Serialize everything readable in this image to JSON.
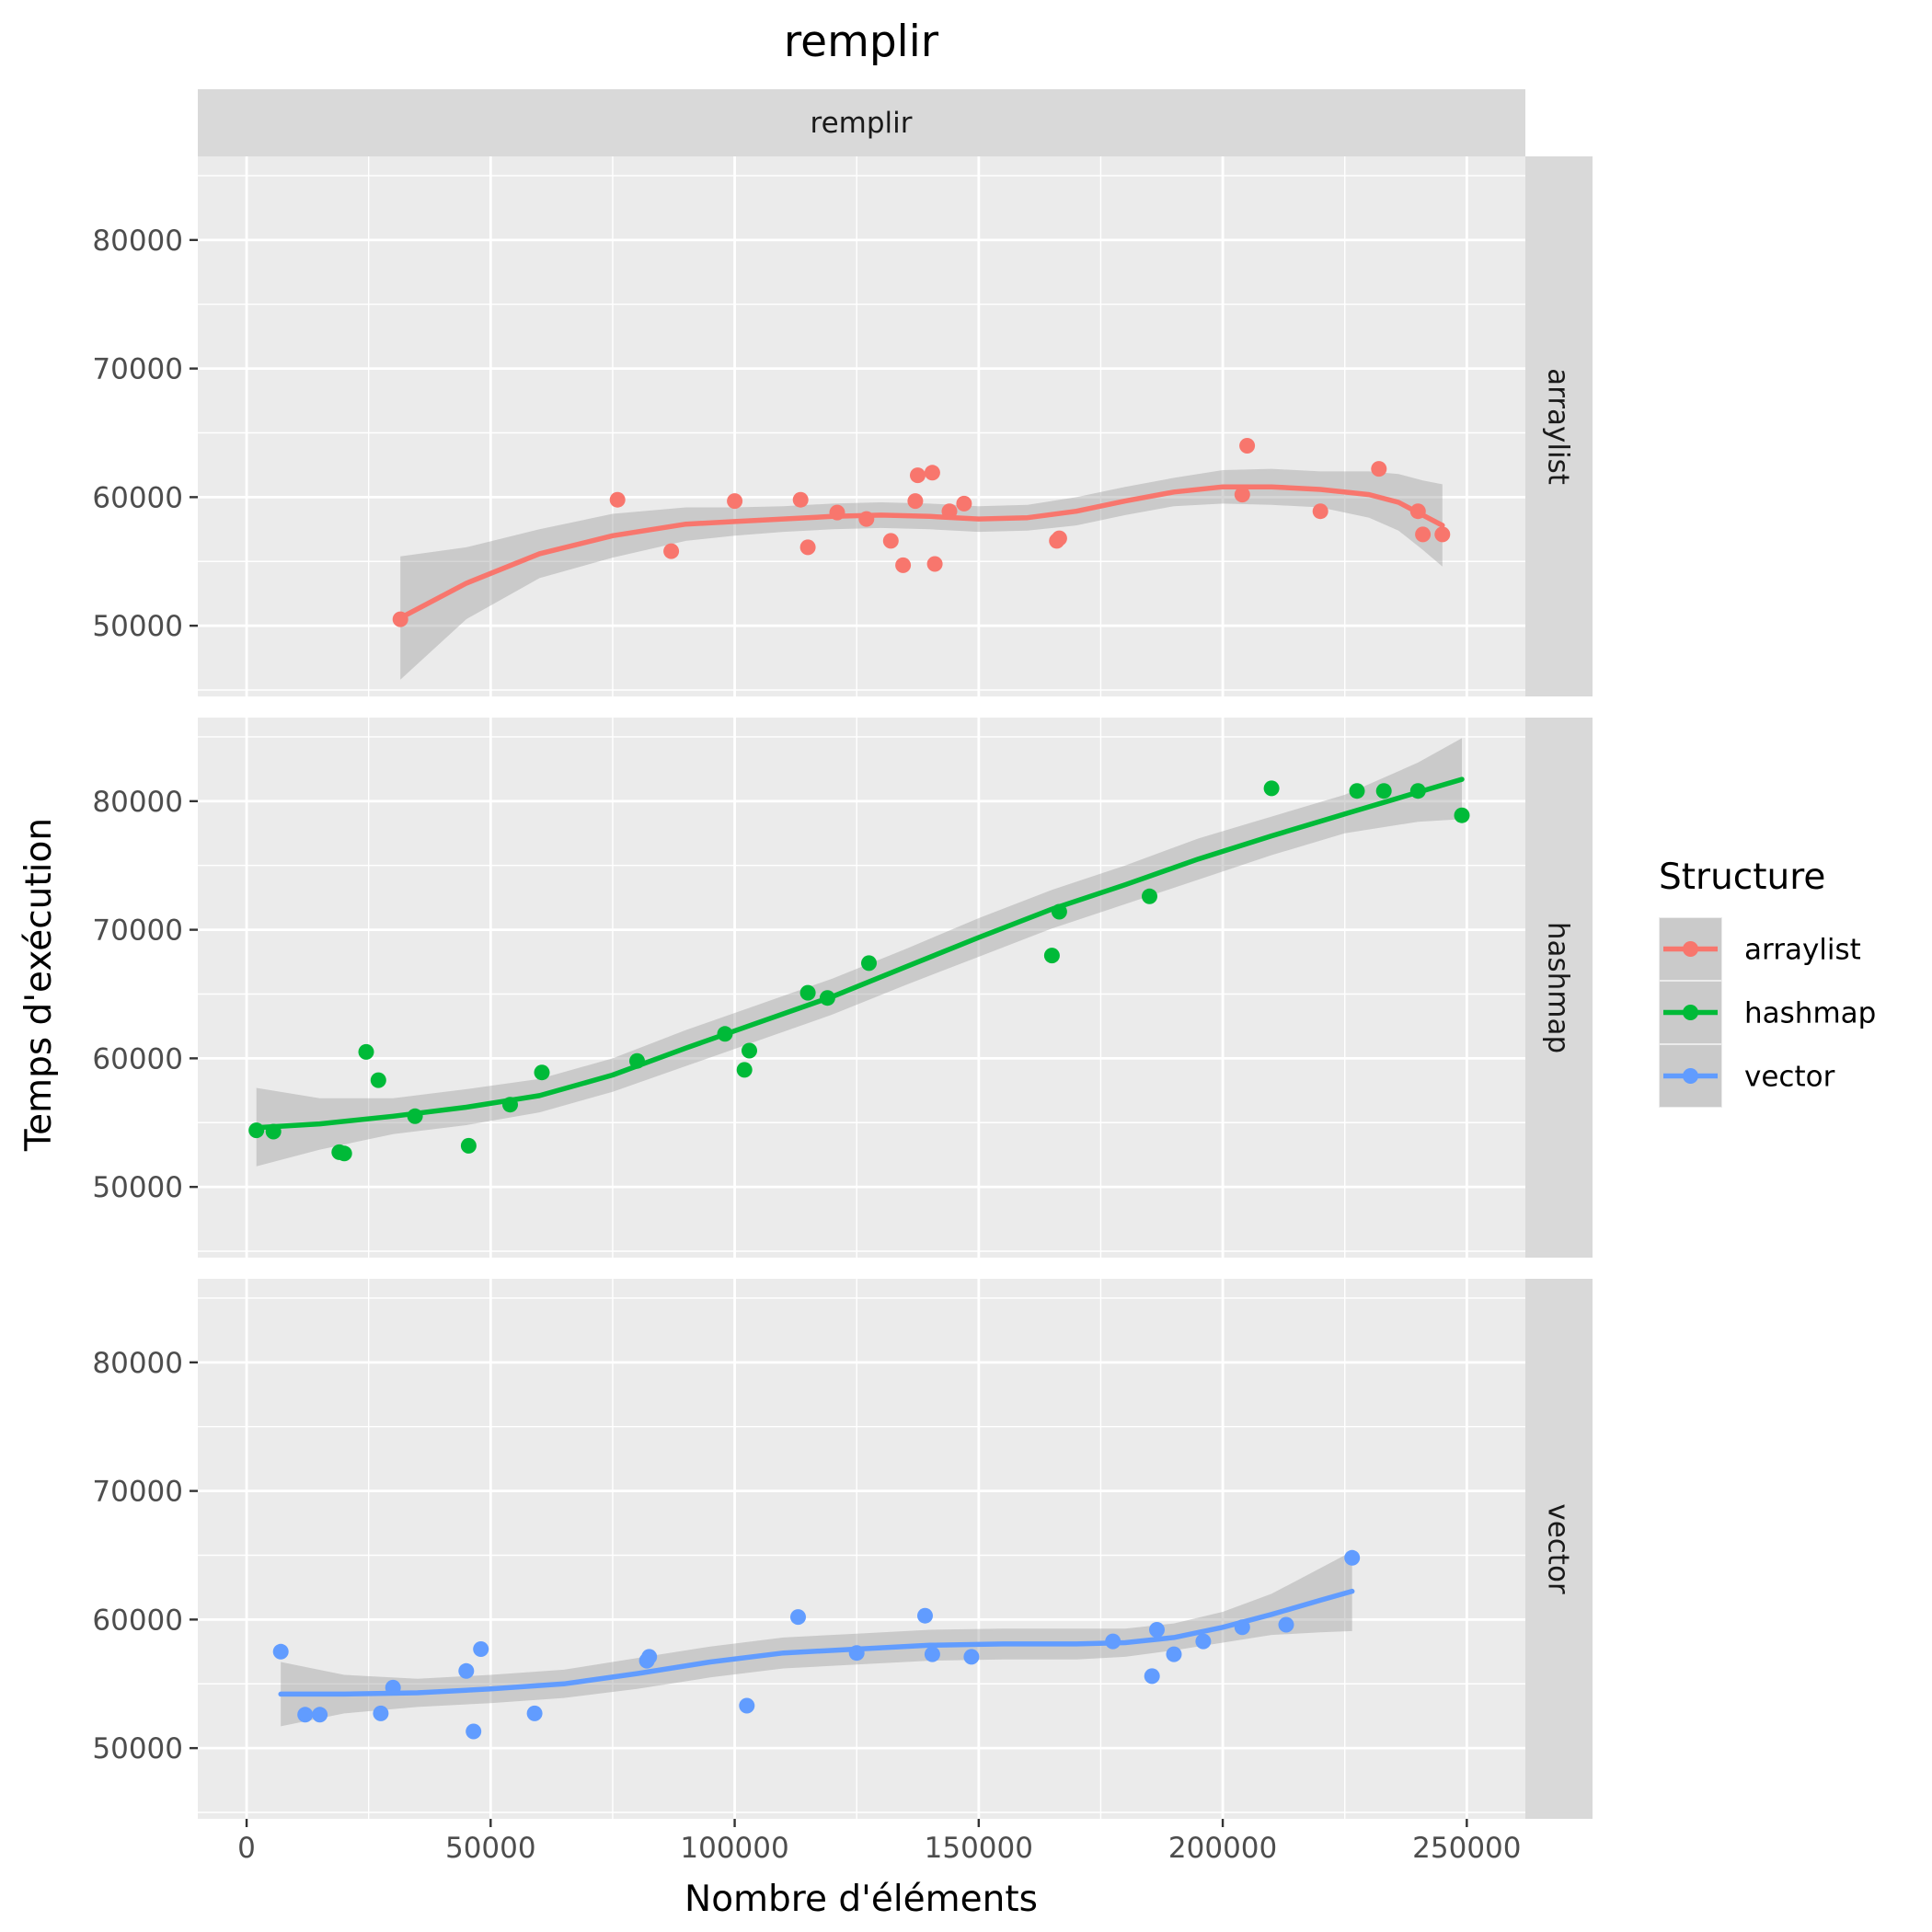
{
  "chart_data": {
    "type": "scatter",
    "title": "remplir",
    "facet_col_label": "remplir",
    "xlabel": "Nombre d'éléments",
    "ylabel": "Temps d'exécution",
    "xlim": [
      -10000,
      262000
    ],
    "ylim": [
      44500,
      86500
    ],
    "x_ticks": [
      0,
      50000,
      100000,
      150000,
      200000,
      250000
    ],
    "y_ticks": [
      50000,
      60000,
      70000,
      80000
    ],
    "grid": true,
    "legend": {
      "title": "Structure",
      "position": "right",
      "entries": [
        "arraylist",
        "hashmap",
        "vector"
      ]
    },
    "panels": [
      {
        "name": "arraylist",
        "color": "#F8766D",
        "points": [
          [
            31500,
            50500
          ],
          [
            76000,
            59800
          ],
          [
            87000,
            55800
          ],
          [
            100000,
            59700
          ],
          [
            113500,
            59800
          ],
          [
            115000,
            56100
          ],
          [
            121000,
            58800
          ],
          [
            127000,
            58300
          ],
          [
            132000,
            56600
          ],
          [
            134500,
            54700
          ],
          [
            137000,
            59700
          ],
          [
            137500,
            61700
          ],
          [
            140500,
            61900
          ],
          [
            141000,
            54800
          ],
          [
            144000,
            58900
          ],
          [
            147000,
            59500
          ],
          [
            166000,
            56600
          ],
          [
            166500,
            56800
          ],
          [
            204000,
            60200
          ],
          [
            205000,
            64000
          ],
          [
            220000,
            58900
          ],
          [
            232000,
            62200
          ],
          [
            240000,
            58900
          ],
          [
            241000,
            57100
          ],
          [
            245000,
            57100
          ]
        ],
        "smooth": [
          [
            31500,
            50600
          ],
          [
            45000,
            53300
          ],
          [
            60000,
            55600
          ],
          [
            75000,
            57000
          ],
          [
            90000,
            57900
          ],
          [
            100000,
            58100
          ],
          [
            110000,
            58300
          ],
          [
            120000,
            58500
          ],
          [
            130000,
            58600
          ],
          [
            140000,
            58500
          ],
          [
            150000,
            58300
          ],
          [
            160000,
            58400
          ],
          [
            170000,
            58900
          ],
          [
            180000,
            59700
          ],
          [
            190000,
            60400
          ],
          [
            200000,
            60800
          ],
          [
            210000,
            60800
          ],
          [
            220000,
            60600
          ],
          [
            230000,
            60200
          ],
          [
            236000,
            59600
          ],
          [
            241000,
            58600
          ],
          [
            245000,
            57800
          ]
        ],
        "band": [
          [
            31500,
            45800,
            55400
          ],
          [
            45000,
            50500,
            56100
          ],
          [
            60000,
            53700,
            57500
          ],
          [
            75000,
            55300,
            58700
          ],
          [
            90000,
            56600,
            59200
          ],
          [
            100000,
            57000,
            59200
          ],
          [
            110000,
            57300,
            59300
          ],
          [
            120000,
            57500,
            59500
          ],
          [
            130000,
            57600,
            59600
          ],
          [
            140000,
            57500,
            59500
          ],
          [
            150000,
            57300,
            59300
          ],
          [
            160000,
            57400,
            59400
          ],
          [
            170000,
            57800,
            60000
          ],
          [
            180000,
            58600,
            60800
          ],
          [
            190000,
            59300,
            61500
          ],
          [
            200000,
            59500,
            62100
          ],
          [
            210000,
            59400,
            62200
          ],
          [
            220000,
            59200,
            62000
          ],
          [
            230000,
            58400,
            62000
          ],
          [
            236000,
            57400,
            61800
          ],
          [
            241000,
            55900,
            61300
          ],
          [
            245000,
            54600,
            61000
          ]
        ]
      },
      {
        "name": "hashmap",
        "color": "#00BA38",
        "points": [
          [
            2000,
            54400
          ],
          [
            5500,
            54300
          ],
          [
            19000,
            52700
          ],
          [
            20000,
            52600
          ],
          [
            24500,
            60500
          ],
          [
            27000,
            58300
          ],
          [
            34500,
            55500
          ],
          [
            45500,
            53200
          ],
          [
            54000,
            56400
          ],
          [
            60500,
            58900
          ],
          [
            80000,
            59800
          ],
          [
            98000,
            61900
          ],
          [
            102000,
            59100
          ],
          [
            103000,
            60600
          ],
          [
            115000,
            65100
          ],
          [
            119000,
            64700
          ],
          [
            127500,
            67400
          ],
          [
            165000,
            68000
          ],
          [
            166500,
            71400
          ],
          [
            185000,
            72600
          ],
          [
            210000,
            81000
          ],
          [
            227500,
            80800
          ],
          [
            233000,
            80800
          ],
          [
            240000,
            80800
          ],
          [
            249000,
            78900
          ]
        ],
        "smooth": [
          [
            2000,
            54600
          ],
          [
            15000,
            54900
          ],
          [
            30000,
            55500
          ],
          [
            45000,
            56200
          ],
          [
            60000,
            57100
          ],
          [
            75000,
            58700
          ],
          [
            90000,
            60800
          ],
          [
            105000,
            62800
          ],
          [
            120000,
            64800
          ],
          [
            135000,
            67100
          ],
          [
            150000,
            69400
          ],
          [
            165000,
            71600
          ],
          [
            180000,
            73500
          ],
          [
            195000,
            75500
          ],
          [
            210000,
            77300
          ],
          [
            225000,
            79000
          ],
          [
            240000,
            80700
          ],
          [
            249000,
            81700
          ]
        ],
        "band": [
          [
            2000,
            51600,
            57700
          ],
          [
            15000,
            52900,
            56900
          ],
          [
            30000,
            54100,
            56900
          ],
          [
            45000,
            54800,
            57600
          ],
          [
            60000,
            55800,
            58400
          ],
          [
            75000,
            57400,
            60000
          ],
          [
            90000,
            59400,
            62200
          ],
          [
            105000,
            61400,
            64200
          ],
          [
            120000,
            63400,
            66200
          ],
          [
            135000,
            65700,
            68500
          ],
          [
            150000,
            67900,
            70900
          ],
          [
            165000,
            70100,
            73100
          ],
          [
            180000,
            72000,
            75000
          ],
          [
            195000,
            73900,
            77100
          ],
          [
            210000,
            75800,
            78800
          ],
          [
            225000,
            77500,
            80500
          ],
          [
            240000,
            78400,
            83000
          ],
          [
            249000,
            78600,
            84900
          ]
        ]
      },
      {
        "name": "vector",
        "color": "#619CFF",
        "points": [
          [
            7000,
            57500
          ],
          [
            12000,
            52600
          ],
          [
            15000,
            52600
          ],
          [
            27500,
            52700
          ],
          [
            30000,
            54700
          ],
          [
            45000,
            56000
          ],
          [
            46500,
            51300
          ],
          [
            48000,
            57700
          ],
          [
            59000,
            52700
          ],
          [
            82000,
            56800
          ],
          [
            82500,
            57100
          ],
          [
            102500,
            53300
          ],
          [
            113000,
            60200
          ],
          [
            125000,
            57400
          ],
          [
            139000,
            60300
          ],
          [
            140500,
            57300
          ],
          [
            148500,
            57100
          ],
          [
            177500,
            58300
          ],
          [
            185500,
            55600
          ],
          [
            186500,
            59200
          ],
          [
            190000,
            57300
          ],
          [
            196000,
            58300
          ],
          [
            204000,
            59400
          ],
          [
            213000,
            59600
          ],
          [
            226500,
            64800
          ]
        ],
        "smooth": [
          [
            7000,
            54200
          ],
          [
            20000,
            54200
          ],
          [
            35000,
            54300
          ],
          [
            50000,
            54600
          ],
          [
            65000,
            55000
          ],
          [
            80000,
            55800
          ],
          [
            95000,
            56700
          ],
          [
            110000,
            57400
          ],
          [
            125000,
            57700
          ],
          [
            140000,
            58000
          ],
          [
            155000,
            58100
          ],
          [
            170000,
            58100
          ],
          [
            180000,
            58200
          ],
          [
            190000,
            58600
          ],
          [
            200000,
            59400
          ],
          [
            210000,
            60400
          ],
          [
            220000,
            61500
          ],
          [
            226500,
            62200
          ]
        ],
        "band": [
          [
            7000,
            51700,
            56700
          ],
          [
            20000,
            52700,
            55700
          ],
          [
            35000,
            53200,
            55400
          ],
          [
            50000,
            53500,
            55700
          ],
          [
            65000,
            53900,
            56100
          ],
          [
            80000,
            54600,
            57000
          ],
          [
            95000,
            55500,
            57900
          ],
          [
            110000,
            56200,
            58600
          ],
          [
            125000,
            56500,
            58900
          ],
          [
            140000,
            56800,
            59200
          ],
          [
            155000,
            56900,
            59300
          ],
          [
            170000,
            56900,
            59300
          ],
          [
            180000,
            57100,
            59300
          ],
          [
            190000,
            57600,
            59700
          ],
          [
            200000,
            58200,
            60600
          ],
          [
            210000,
            58800,
            62000
          ],
          [
            220000,
            59000,
            64000
          ],
          [
            226500,
            59100,
            65300
          ]
        ]
      }
    ]
  }
}
